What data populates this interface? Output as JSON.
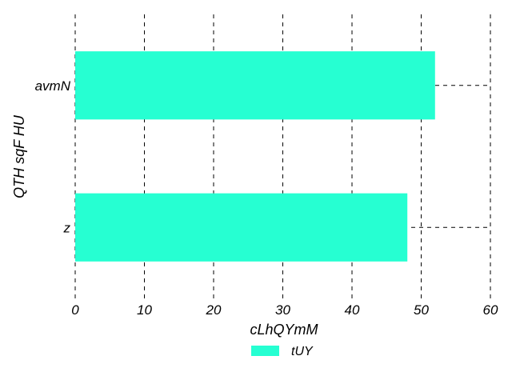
{
  "chart_data": {
    "type": "bar",
    "orientation": "horizontal",
    "categories": [
      "avmN",
      "z"
    ],
    "series": [
      {
        "name": "tUY",
        "values": [
          52,
          48
        ]
      }
    ],
    "xlabel": "cLhQYmM",
    "ylabel": "QTH sqF HU",
    "xlim": [
      0,
      60
    ],
    "xticks": [
      0,
      10,
      20,
      30,
      40,
      50,
      60
    ],
    "grid": "dashed",
    "legend": "bottom-center",
    "bar_color": "#26ffd2"
  }
}
